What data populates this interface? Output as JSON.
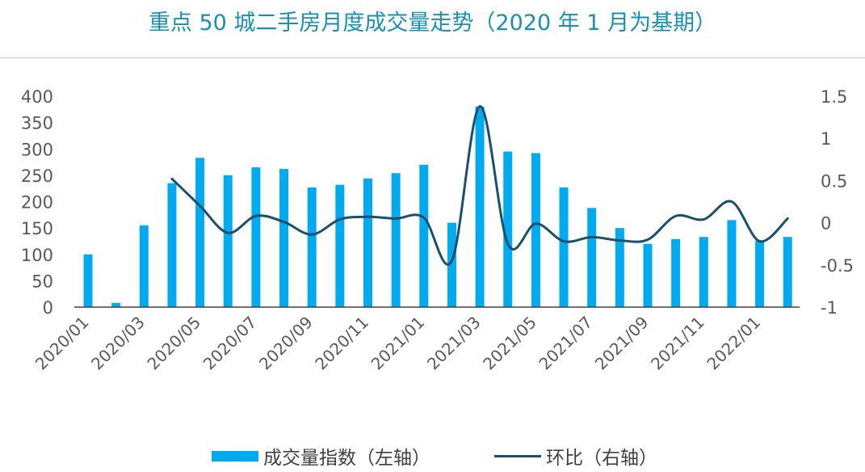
{
  "chart_data": {
    "type": "bar+line",
    "title": "重点 50 城二手房月度成交量走势（2020 年 1 月为基期）",
    "x": [
      "2020/01",
      "2020/02",
      "2020/03",
      "2020/04",
      "2020/05",
      "2020/06",
      "2020/07",
      "2020/08",
      "2020/09",
      "2020/10",
      "2020/11",
      "2020/12",
      "2021/01",
      "2021/02",
      "2021/03",
      "2021/04",
      "2021/05",
      "2021/06",
      "2021/07",
      "2021/08",
      "2021/09",
      "2021/10",
      "2021/11",
      "2021/12",
      "2022/01",
      "2022/02"
    ],
    "x_tick_labels": [
      "2020/01",
      "2020/03",
      "2020/05",
      "2020/07",
      "2020/09",
      "2020/11",
      "2021/01",
      "2021/03",
      "2021/05",
      "2021/07",
      "2021/09",
      "2021/11",
      "2022/01"
    ],
    "series": [
      {
        "name": "成交量指数（左轴）",
        "type": "bar",
        "axis": "left",
        "color": "#00aaee",
        "values": [
          100,
          8,
          155,
          235,
          283,
          250,
          265,
          262,
          227,
          232,
          244,
          254,
          270,
          160,
          380,
          295,
          292,
          227,
          188,
          150,
          120,
          129,
          133,
          165,
          126,
          133
        ]
      },
      {
        "name": "环比（右轴）",
        "type": "line",
        "axis": "right",
        "color": "#1b4f6b",
        "values": [
          null,
          null,
          null,
          0.52,
          0.2,
          -0.12,
          0.08,
          0.01,
          -0.14,
          0.04,
          0.07,
          0.05,
          0.06,
          -0.45,
          1.38,
          -0.25,
          -0.01,
          -0.22,
          -0.17,
          -0.21,
          -0.2,
          0.08,
          0.04,
          0.25,
          -0.22,
          0.05
        ]
      }
    ],
    "left_axis": {
      "min": 0,
      "max": 400,
      "ticks": [
        "0",
        "50",
        "100",
        "150",
        "200",
        "250",
        "300",
        "350",
        "400"
      ]
    },
    "right_axis": {
      "min": -1,
      "max": 1.5,
      "ticks": [
        "-1",
        "-0.5",
        "0",
        "0.5",
        "1",
        "1.5"
      ]
    },
    "grid": false,
    "legend_position": "bottom"
  }
}
